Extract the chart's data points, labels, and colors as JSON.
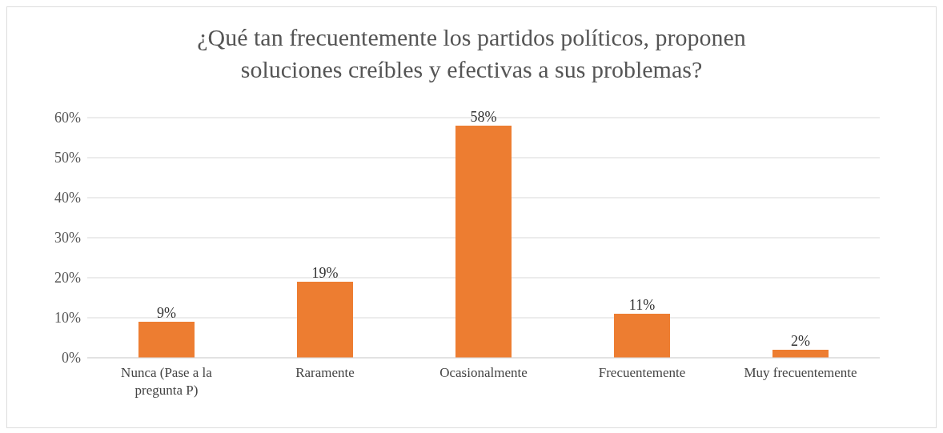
{
  "chart_data": {
    "type": "bar",
    "title": "¿Qué tan frecuentemente los partidos políticos, proponen soluciones creíbles y efectivas a sus problemas?",
    "categories": [
      "Nunca (Pase a la pregunta  P)",
      "Raramente",
      "Ocasionalmente",
      "Frecuentemente",
      "Muy frecuentemente"
    ],
    "values": [
      9,
      19,
      58,
      11,
      2
    ],
    "value_labels": [
      "9%",
      "19%",
      "58%",
      "11%",
      "2%"
    ],
    "color": "#ed7d31",
    "ylim": [
      0,
      60
    ],
    "yticks": [
      {
        "value": 0,
        "label": "0%"
      },
      {
        "value": 10,
        "label": "10%"
      },
      {
        "value": 20,
        "label": "20%"
      },
      {
        "value": 30,
        "label": "30%"
      },
      {
        "value": 40,
        "label": "40%"
      },
      {
        "value": 50,
        "label": "50%"
      },
      {
        "value": 60,
        "label": "60%"
      }
    ],
    "grid": "y"
  }
}
